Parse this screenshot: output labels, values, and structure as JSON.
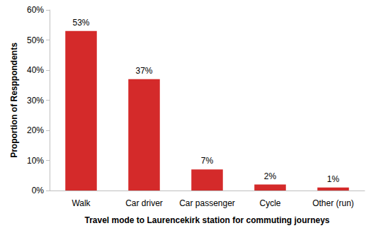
{
  "chart_data": {
    "type": "bar",
    "xlabel": "Travel mode to Laurencekirk station for commuting journeys",
    "ylabel": "Proportion of Resppondents",
    "categories": [
      "Walk",
      "Car driver",
      "Car passenger",
      "Cycle",
      "Other (run)"
    ],
    "values": [
      53,
      37,
      7,
      2,
      1
    ],
    "value_labels": [
      "53%",
      "37%",
      "7%",
      "2%",
      "1%"
    ],
    "color": "#d42a2a",
    "ylim": [
      0,
      60
    ],
    "yticks": [
      {
        "value": 0,
        "label": "0%"
      },
      {
        "value": 10,
        "label": "10%"
      },
      {
        "value": 20,
        "label": "20%"
      },
      {
        "value": 30,
        "label": "30%"
      },
      {
        "value": 40,
        "label": "40%"
      },
      {
        "value": 50,
        "label": "50%"
      },
      {
        "value": 60,
        "label": "60%"
      }
    ],
    "grid": false,
    "data_labels": true
  }
}
